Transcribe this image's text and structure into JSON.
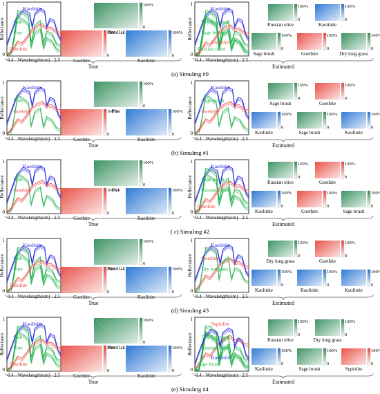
{
  "rows": [
    {
      "caption": "(a) SimuImg #0",
      "true_label": "True",
      "est_label": "Estimated",
      "true_plot": {
        "curves": [
          "Kaolinite",
          "Oak",
          "Pine",
          "Goethite"
        ]
      },
      "true_maps": [
        {
          "names": [
            "Pine",
            "Oak"
          ],
          "color": "#2e8b57",
          "pct": "100%",
          "zero": "0"
        },
        {
          "names": [
            "Goethite"
          ],
          "color": "#e8453c",
          "pct": "100%",
          "zero": "0"
        },
        {
          "names": [
            "Kaolinite"
          ],
          "color": "#1f6fd1",
          "pct": "100%",
          "zero": "0"
        }
      ],
      "est_plot": {
        "curves": [
          "Kaolinite",
          "Dry longrass",
          "Sage brush",
          "Russian olive",
          "Goethite"
        ]
      },
      "est_maps": [
        {
          "names": [
            "Russian olive"
          ],
          "color": "#2e8b57",
          "pct": "100%",
          "zero": "0"
        },
        {
          "names": [
            "Kaolinite"
          ],
          "color": "#1f6fd1",
          "pct": "100%",
          "zero": "0"
        },
        {
          "names": [
            "Sage brush"
          ],
          "color": "#2e8b57",
          "pct": "100%",
          "zero": "0"
        },
        {
          "names": [
            "Goethite"
          ],
          "color": "#e8453c",
          "pct": "100%",
          "zero": "0"
        },
        {
          "names": [
            "Dry long grass"
          ],
          "color": "#2e8b57",
          "pct": "100%",
          "zero": "0"
        }
      ]
    },
    {
      "caption": "(b) SimuImg #1",
      "true_label": "True",
      "est_label": "Estimated",
      "true_plot": {
        "curves": [
          "Kaolinite",
          "Pine",
          "Goethite"
        ]
      },
      "true_maps": [
        {
          "names": [
            "Pine"
          ],
          "color": "#2e8b57",
          "pct": "100%",
          "zero": "0"
        },
        {
          "names": [
            "Goethite"
          ],
          "color": "#e8453c",
          "pct": "100%",
          "zero": "0"
        },
        {
          "names": [
            "Kaolinite"
          ],
          "color": "#1f6fd1",
          "pct": "100%",
          "zero": "0"
        }
      ],
      "est_plot": {
        "curves": [
          "Kaolinite",
          "Sage brush",
          "Goethite"
        ]
      },
      "est_maps": [
        {
          "names": [
            "Sage brush"
          ],
          "color": "#2e8b57",
          "pct": "100%",
          "zero": "0"
        },
        {
          "names": [
            "Goethite"
          ],
          "color": "#e8453c",
          "pct": "100%",
          "zero": "0"
        },
        {
          "names": [
            "Kaolinite"
          ],
          "color": "#1f6fd1",
          "pct": "100%",
          "zero": "0"
        },
        {
          "names": [
            "Sage brush"
          ],
          "color": "#2e8b57",
          "pct": "100%",
          "zero": "0"
        },
        {
          "names": [
            "Kaolinite"
          ],
          "color": "#1f6fd1",
          "pct": "100%",
          "zero": "0"
        }
      ]
    },
    {
      "caption": "( c) SimuImg #2",
      "true_label": "True",
      "est_label": "Estimated",
      "true_plot": {
        "curves": [
          "Kaolinite",
          "Oak",
          "Goethite"
        ]
      },
      "true_maps": [
        {
          "names": [
            "Oak"
          ],
          "color": "#2e8b57",
          "pct": "100%",
          "zero": "0"
        },
        {
          "names": [
            "Goethite"
          ],
          "color": "#e8453c",
          "pct": "100%",
          "zero": "0"
        },
        {
          "names": [
            "Kaolinite"
          ],
          "color": "#1f6fd1",
          "pct": "100%",
          "zero": "0"
        }
      ],
      "est_plot": {
        "curves": [
          "Kaolinite",
          "Sage brush",
          "Russian olive",
          "Goethite"
        ]
      },
      "est_maps": [
        {
          "names": [
            "Russian olive"
          ],
          "color": "#2e8b57",
          "pct": "100%",
          "zero": "0"
        },
        {
          "names": [
            "Goethite"
          ],
          "color": "#e8453c",
          "pct": "100%",
          "zero": "0"
        },
        {
          "names": [
            "Kaolinite"
          ],
          "color": "#1f6fd1",
          "pct": "100%",
          "zero": "0"
        },
        {
          "names": [
            "Goethite"
          ],
          "color": "#e8453c",
          "pct": "100%",
          "zero": "0"
        },
        {
          "names": [
            "Sage brush"
          ],
          "color": "#2e8b57",
          "pct": "100%",
          "zero": "0"
        }
      ]
    },
    {
      "caption": "(d) SimuImg #3",
      "true_label": "True",
      "est_label": "Estimated",
      "true_plot": {
        "curves": [
          "Kaolinite",
          "Oak",
          "Pine",
          "Goethite"
        ]
      },
      "true_maps": [
        {
          "names": [
            "Pine",
            "Oak"
          ],
          "color": "#2e8b57",
          "pct": "100%",
          "zero": "0"
        },
        {
          "names": [
            "Goethite"
          ],
          "color": "#e8453c",
          "pct": "100%",
          "zero": "0"
        },
        {
          "names": [
            "Kaolinite"
          ],
          "color": "#1f6fd1",
          "pct": "100%",
          "zero": "0"
        }
      ],
      "est_plot": {
        "curves": [
          "Kaolinite",
          "Goethite",
          "Dry longrass"
        ]
      },
      "est_maps": [
        {
          "names": [
            "Dry long grass"
          ],
          "color": "#2e8b57",
          "pct": "100%",
          "zero": "0"
        },
        {
          "names": [
            "Goethite"
          ],
          "color": "#e8453c",
          "pct": "100%",
          "zero": "0"
        },
        {
          "names": [
            "Kaolinite"
          ],
          "color": "#1f6fd1",
          "pct": "100%",
          "zero": "0"
        },
        {
          "names": [
            "Kaolinite"
          ],
          "color": "#1f6fd1",
          "pct": "100%",
          "zero": "0"
        },
        {
          "names": [
            "Kaolinite"
          ],
          "color": "#1f6fd1",
          "pct": "100%",
          "zero": "0"
        }
      ]
    },
    {
      "caption": "(e) SimuImg #4",
      "true_label": "True",
      "est_label": "Estimated",
      "true_plot": {
        "curves": [
          "Kaolinite",
          "Oak",
          "Pine",
          "Goethite"
        ]
      },
      "true_maps": [
        {
          "names": [
            "Pine",
            "Oak"
          ],
          "color": "#2e8b57",
          "pct": "100%",
          "zero": "0"
        },
        {
          "names": [
            "Goethite"
          ],
          "color": "#e8453c",
          "pct": "100%",
          "zero": "0"
        },
        {
          "names": [
            "Kaolinite"
          ],
          "color": "#1f6fd1",
          "pct": "100%",
          "zero": "0"
        }
      ],
      "est_plot": {
        "curves": [
          "Sepiolite",
          "Dry longrass",
          "Russian olive",
          "Sage brush",
          "Kaolinite"
        ]
      },
      "est_maps": [
        {
          "names": [
            "Russian olive"
          ],
          "color": "#2e8b57",
          "pct": "100%",
          "zero": "0"
        },
        {
          "names": [
            "Dry long grass"
          ],
          "color": "#2e8b57",
          "pct": "100%",
          "zero": "0"
        },
        {
          "names": [
            "Kaolinite"
          ],
          "color": "#1f6fd1",
          "pct": "100%",
          "zero": "0"
        },
        {
          "names": [
            "Sage brush"
          ],
          "color": "#2e8b57",
          "pct": "100%",
          "zero": "0"
        },
        {
          "names": [
            "Sepiolite"
          ],
          "color": "#e8453c",
          "pct": "100%",
          "zero": "0"
        }
      ]
    }
  ],
  "axis": {
    "ylabel": "Reflectance",
    "xlabel": "Wavelength(um)",
    "xmin": "0.4",
    "xmax": "2.5",
    "y0": "0",
    "y1": "1"
  },
  "colors": {
    "kaolinite": "#1a1ad8",
    "vegetation": "#22b14c",
    "goethite": "#e8453c"
  }
}
